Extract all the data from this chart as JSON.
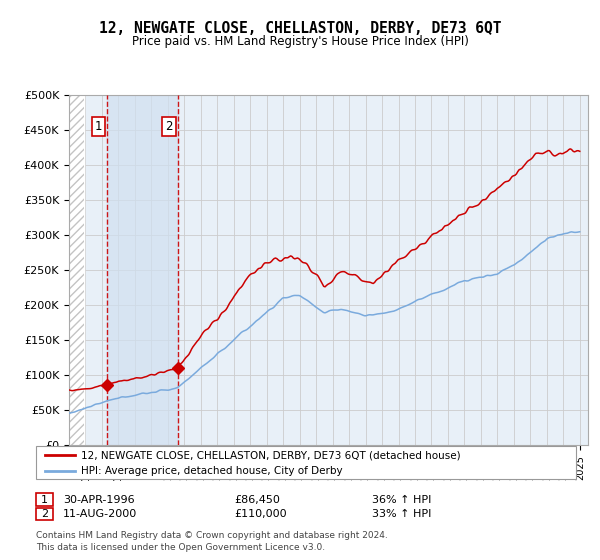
{
  "title": "12, NEWGATE CLOSE, CHELLASTON, DERBY, DE73 6QT",
  "subtitle": "Price paid vs. HM Land Registry's House Price Index (HPI)",
  "ylim": [
    0,
    500000
  ],
  "yticks": [
    0,
    50000,
    100000,
    150000,
    200000,
    250000,
    300000,
    350000,
    400000,
    450000,
    500000
  ],
  "ytick_labels": [
    "£0",
    "£50K",
    "£100K",
    "£150K",
    "£200K",
    "£250K",
    "£300K",
    "£350K",
    "£400K",
    "£450K",
    "£500K"
  ],
  "sale1_date_num": 1996.33,
  "sale1_price": 86450,
  "sale1_label": "30-APR-1996",
  "sale1_price_str": "£86,450",
  "sale1_hpi_str": "36% ↑ HPI",
  "sale2_date_num": 2000.62,
  "sale2_price": 110000,
  "sale2_label": "11-AUG-2000",
  "sale2_price_str": "£110,000",
  "sale2_hpi_str": "33% ↑ HPI",
  "legend_line1": "12, NEWGATE CLOSE, CHELLASTON, DERBY, DE73 6QT (detached house)",
  "legend_line2": "HPI: Average price, detached house, City of Derby",
  "footer": "Contains HM Land Registry data © Crown copyright and database right 2024.\nThis data is licensed under the Open Government Licence v3.0.",
  "line_color_red": "#cc0000",
  "line_color_blue": "#7aaadd",
  "bg_color": "#e8f0f8",
  "shade_color": "#d0e0f0",
  "grid_color": "#cccccc"
}
